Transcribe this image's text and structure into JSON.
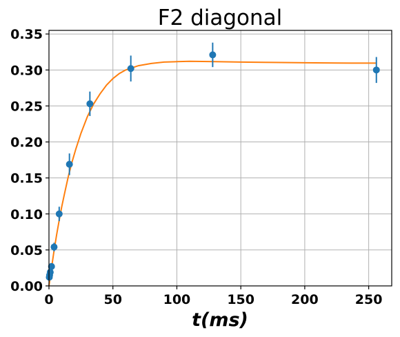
{
  "chart_data": {
    "type": "scatter",
    "title": "F2 diagonal",
    "xlabel": "t(ms)",
    "ylabel": "",
    "xlim": [
      0,
      268
    ],
    "ylim": [
      0,
      0.355
    ],
    "xticks": [
      "0",
      "50",
      "100",
      "150",
      "200",
      "250"
    ],
    "yticks": [
      "0.00",
      "0.05",
      "0.10",
      "0.15",
      "0.20",
      "0.25",
      "0.30",
      "0.35"
    ],
    "grid": true,
    "series": [
      {
        "type": "errorbar",
        "color": "#1f77b4",
        "points": [
          {
            "x": 0.25,
            "y": 0.012,
            "err": 0.003
          },
          {
            "x": 0.5,
            "y": 0.015,
            "err": 0.003
          },
          {
            "x": 1,
            "y": 0.019,
            "err": 0.004
          },
          {
            "x": 2,
            "y": 0.027,
            "err": 0.004
          },
          {
            "x": 4,
            "y": 0.054,
            "err": 0.006
          },
          {
            "x": 8,
            "y": 0.1,
            "err": 0.01
          },
          {
            "x": 16,
            "y": 0.169,
            "err": 0.015
          },
          {
            "x": 32,
            "y": 0.253,
            "err": 0.017
          },
          {
            "x": 64,
            "y": 0.302,
            "err": 0.018
          },
          {
            "x": 128,
            "y": 0.321,
            "err": 0.017
          },
          {
            "x": 256,
            "y": 0.3,
            "err": 0.018
          }
        ]
      },
      {
        "type": "line",
        "color": "#ff7f0e",
        "x": [
          0,
          2,
          4,
          6,
          8,
          10,
          12,
          15,
          18,
          21,
          25,
          30,
          35,
          40,
          45,
          50,
          55,
          60,
          70,
          80,
          90,
          100,
          110,
          120,
          130,
          150,
          175,
          200,
          225,
          256
        ],
        "y": [
          0,
          0.025,
          0.049,
          0.071,
          0.091,
          0.11,
          0.127,
          0.151,
          0.172,
          0.19,
          0.212,
          0.235,
          0.253,
          0.267,
          0.279,
          0.288,
          0.295,
          0.3,
          0.306,
          0.309,
          0.311,
          0.3115,
          0.312,
          0.3118,
          0.3115,
          0.311,
          0.3105,
          0.31,
          0.3096,
          0.3095
        ]
      }
    ]
  }
}
